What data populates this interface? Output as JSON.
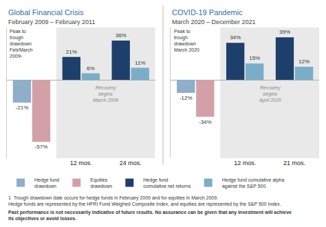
{
  "chart_data": [
    {
      "type": "bar",
      "title": "Global Financial Crisis",
      "subtitle": "February 2009 – February 2011",
      "categories": [
        null,
        "12 mos.",
        "24 mos."
      ],
      "series": [
        {
          "name": "Hedge fund\ndrawdown",
          "color": "#8eaec9",
          "values": [
            -21,
            null,
            null
          ],
          "value_labels": [
            "-21%",
            null,
            null
          ]
        },
        {
          "name": "Equities\ndrawdown",
          "color": "#d4a0a8",
          "values": [
            -57,
            null,
            null
          ],
          "value_labels": [
            "-57%",
            null,
            null
          ]
        },
        {
          "name": "Hedge fund\ncumulative net returns",
          "color": "#1e3f6b",
          "values": [
            null,
            21,
            36
          ],
          "value_labels": [
            null,
            "21%",
            "36%"
          ]
        },
        {
          "name": "Hedge fund cumulative alpha\nagainst the S&P 500",
          "color": "#7aaec8",
          "values": [
            null,
            6,
            11
          ],
          "value_labels": [
            null,
            "6%",
            "11%"
          ]
        }
      ],
      "annotations": [
        "Peak to\ntrough\ndrawdown\nFeb/March\n2009¹",
        "Recovery\nbegins\nMarch 2009"
      ],
      "ylim": [
        -72,
        48
      ],
      "data_labels": true,
      "tick_labels": "x",
      "grid": false,
      "legend": "bottom"
    },
    {
      "type": "bar",
      "title": "COVID-19 Pandemic",
      "subtitle": "March 2020 – December 2021",
      "categories": [
        null,
        "12 mos.",
        "21 mos."
      ],
      "series": [
        {
          "name": "Hedge fund\ndrawdown",
          "color": "#8eaec9",
          "values": [
            -12,
            null,
            null
          ],
          "value_labels": [
            "-12%",
            null,
            null
          ]
        },
        {
          "name": "Equities\ndrawdown",
          "color": "#d4a0a8",
          "values": [
            -34,
            null,
            null
          ],
          "value_labels": [
            "-34%",
            null,
            null
          ]
        },
        {
          "name": "Hedge fund\ncumulative net returns",
          "color": "#1e3f6b",
          "values": [
            null,
            34,
            39
          ],
          "value_labels": [
            null,
            "34%",
            "39%"
          ]
        },
        {
          "name": "Hedge fund cumulative alpha\nagainst the S&P 500",
          "color": "#7aaec8",
          "values": [
            null,
            15,
            12
          ],
          "value_labels": [
            null,
            "15%",
            "12%"
          ]
        }
      ],
      "annotations": [
        "Peak to\ntrough\ndrawdown\nMarch 2020",
        "Recovery\nbegins\nApril 2020"
      ],
      "ylim": [
        -72,
        48
      ],
      "data_labels": true,
      "tick_labels": "x",
      "grid": false,
      "legend": "bottom"
    }
  ],
  "footnotes": [
    "1  Trough drawdown date occurs for hedge funds in February 2009 and for equities in March 2009.\nHedge funds are represented by the HFRI Fund Weighed Composite Index, and equities are represented by the S&P 500 Index.",
    "Past performance is not necessarily indicative of future results. No assurance can be given that any investment will achieve\nits objectives or avoid losses."
  ]
}
